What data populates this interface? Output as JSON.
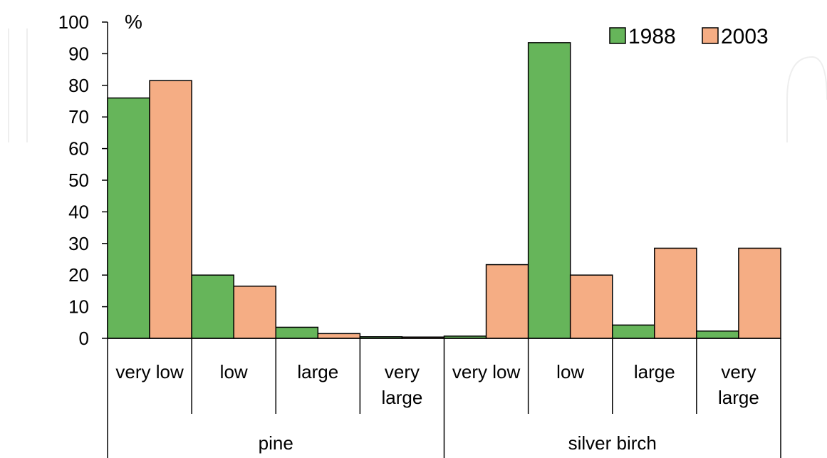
{
  "chart_data": {
    "type": "bar",
    "y_unit_label": "%",
    "ylim": [
      0,
      100
    ],
    "yticks": [
      0,
      10,
      20,
      30,
      40,
      50,
      60,
      70,
      80,
      90,
      100
    ],
    "grid": false,
    "legend_position": "top-right",
    "groups": [
      {
        "label": "pine",
        "categories": [
          [
            "very low"
          ],
          [
            "low"
          ],
          [
            "large"
          ],
          [
            "very",
            "large"
          ]
        ]
      },
      {
        "label": "silver birch",
        "categories": [
          [
            "very low"
          ],
          [
            "low"
          ],
          [
            "large"
          ],
          [
            "very",
            "large"
          ]
        ]
      }
    ],
    "series": [
      {
        "name": "1988",
        "color": "#66b55a",
        "values": [
          76,
          20,
          3.5,
          0.5,
          0.7,
          93.5,
          4.2,
          2.3
        ]
      },
      {
        "name": "2003",
        "color": "#f5ad84",
        "values": [
          81.5,
          16.5,
          1.5,
          0.4,
          23.3,
          20,
          28.5,
          28.5
        ]
      }
    ]
  }
}
